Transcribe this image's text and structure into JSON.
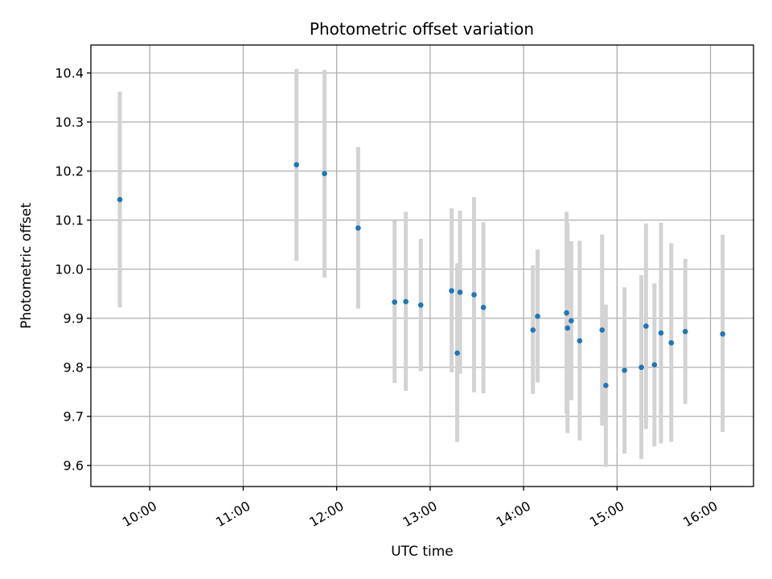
{
  "chart_data": {
    "type": "scatter",
    "title": "Photometric offset variation",
    "xlabel": "UTC time",
    "ylabel": "Photometric offset",
    "x_unit": "UTC hours",
    "xlim": [
      9.37,
      16.46
    ],
    "ylim": [
      9.557,
      10.457
    ],
    "x_ticks": [
      {
        "value": 10,
        "label": "10:00"
      },
      {
        "value": 11,
        "label": "11:00"
      },
      {
        "value": 12,
        "label": "12:00"
      },
      {
        "value": 13,
        "label": "13:00"
      },
      {
        "value": 14,
        "label": "14:00"
      },
      {
        "value": 15,
        "label": "15:00"
      },
      {
        "value": 16,
        "label": "16:00"
      }
    ],
    "y_ticks": [
      {
        "value": 9.6,
        "label": "9.6"
      },
      {
        "value": 9.7,
        "label": "9.7"
      },
      {
        "value": 9.8,
        "label": "9.8"
      },
      {
        "value": 9.9,
        "label": "9.9"
      },
      {
        "value": 10.0,
        "label": "10.0"
      },
      {
        "value": 10.1,
        "label": "10.1"
      },
      {
        "value": 10.2,
        "label": "10.2"
      },
      {
        "value": 10.3,
        "label": "10.3"
      },
      {
        "value": 10.4,
        "label": "10.4"
      }
    ],
    "grid": true,
    "marker_color": "#1f77b4",
    "errorbar_color": "#d3d3d3",
    "points": [
      {
        "x": 9.68,
        "y": 10.142,
        "ylow": 9.922,
        "yhigh": 10.362
      },
      {
        "x": 11.57,
        "y": 10.213,
        "ylow": 10.017,
        "yhigh": 10.408
      },
      {
        "x": 11.87,
        "y": 10.195,
        "ylow": 9.983,
        "yhigh": 10.406
      },
      {
        "x": 12.23,
        "y": 10.084,
        "ylow": 9.92,
        "yhigh": 10.249
      },
      {
        "x": 12.62,
        "y": 9.933,
        "ylow": 9.768,
        "yhigh": 10.099
      },
      {
        "x": 12.74,
        "y": 9.934,
        "ylow": 9.752,
        "yhigh": 10.117
      },
      {
        "x": 12.9,
        "y": 9.927,
        "ylow": 9.792,
        "yhigh": 10.062
      },
      {
        "x": 13.23,
        "y": 9.956,
        "ylow": 9.79,
        "yhigh": 10.124
      },
      {
        "x": 13.29,
        "y": 9.829,
        "ylow": 9.648,
        "yhigh": 10.012
      },
      {
        "x": 13.32,
        "y": 9.953,
        "ylow": 9.787,
        "yhigh": 10.119
      },
      {
        "x": 13.47,
        "y": 9.948,
        "ylow": 9.749,
        "yhigh": 10.147
      },
      {
        "x": 13.57,
        "y": 9.922,
        "ylow": 9.747,
        "yhigh": 10.096
      },
      {
        "x": 14.1,
        "y": 9.876,
        "ylow": 9.746,
        "yhigh": 10.008
      },
      {
        "x": 14.15,
        "y": 9.904,
        "ylow": 9.769,
        "yhigh": 10.04
      },
      {
        "x": 14.46,
        "y": 9.911,
        "ylow": 9.706,
        "yhigh": 10.117
      },
      {
        "x": 14.47,
        "y": 9.88,
        "ylow": 9.666,
        "yhigh": 10.094
      },
      {
        "x": 14.51,
        "y": 9.895,
        "ylow": 9.733,
        "yhigh": 10.057
      },
      {
        "x": 14.6,
        "y": 9.854,
        "ylow": 9.651,
        "yhigh": 10.058
      },
      {
        "x": 14.84,
        "y": 9.876,
        "ylow": 9.681,
        "yhigh": 10.071
      },
      {
        "x": 14.88,
        "y": 9.763,
        "ylow": 9.597,
        "yhigh": 9.928
      },
      {
        "x": 15.08,
        "y": 9.794,
        "ylow": 9.624,
        "yhigh": 9.963
      },
      {
        "x": 15.26,
        "y": 9.8,
        "ylow": 9.613,
        "yhigh": 9.988
      },
      {
        "x": 15.31,
        "y": 9.884,
        "ylow": 9.674,
        "yhigh": 10.093
      },
      {
        "x": 15.4,
        "y": 9.805,
        "ylow": 9.639,
        "yhigh": 9.971
      },
      {
        "x": 15.47,
        "y": 9.87,
        "ylow": 9.645,
        "yhigh": 10.095
      },
      {
        "x": 15.58,
        "y": 9.85,
        "ylow": 9.648,
        "yhigh": 10.053
      },
      {
        "x": 15.73,
        "y": 9.873,
        "ylow": 9.725,
        "yhigh": 10.021
      },
      {
        "x": 16.13,
        "y": 9.868,
        "ylow": 9.668,
        "yhigh": 10.07
      }
    ]
  }
}
